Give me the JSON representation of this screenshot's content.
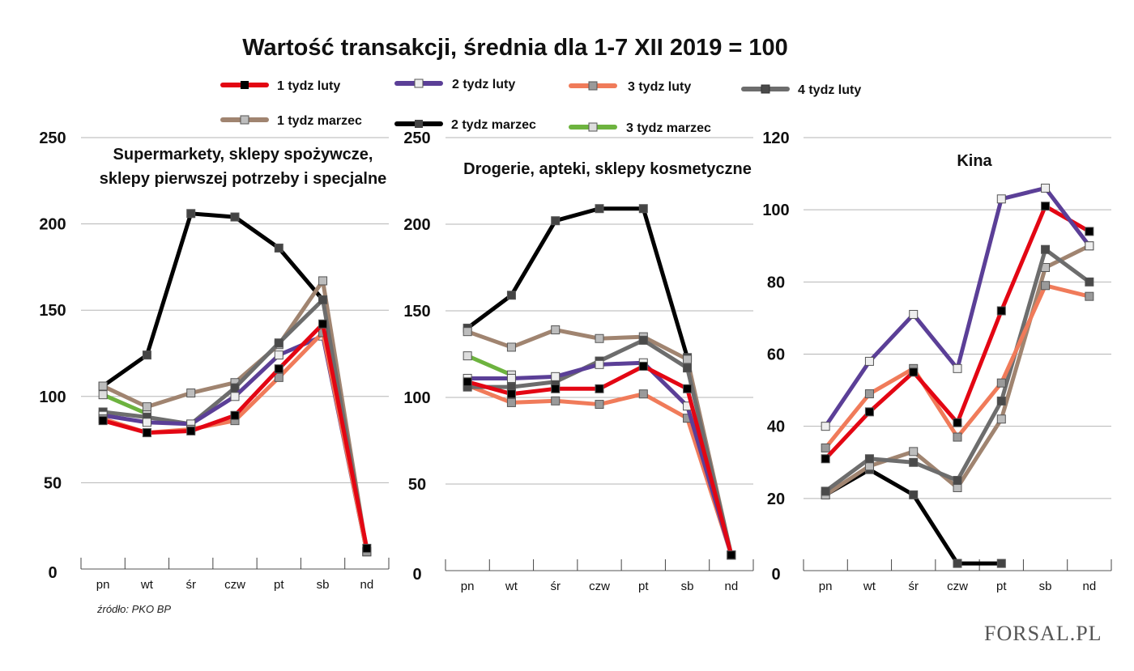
{
  "title": "Wartość transakcji, średnia dla 1-7 XII 2019 = 100",
  "source": "źródło: PKO BP",
  "logo": "FORSAL.PL",
  "legend": [
    {
      "name": "1 tydz luty",
      "color": "#e30613",
      "marker": "#000000"
    },
    {
      "name": "2 tydz luty",
      "color": "#5b3f97",
      "marker": "#eeeeee"
    },
    {
      "name": "3 tydz luty",
      "color": "#f07b5a",
      "marker": "#9a9a9a"
    },
    {
      "name": "4 tydz luty",
      "color": "#6d6d6d",
      "marker": "#4a4a4a"
    },
    {
      "name": "1 tydz marzec",
      "color": "#a08470",
      "marker": "#bdbdbd"
    },
    {
      "name": "2 tydz marzec",
      "color": "#000000",
      "marker": "#444444"
    },
    {
      "name": "3 tydz marzec",
      "color": "#6db33f",
      "marker": "#dddddd"
    }
  ],
  "chart_data": [
    {
      "type": "line",
      "title": "Supermarkety, sklepy spożywcze, sklepy pierwszej potrzeby i specjalne",
      "title_lines": [
        "Supermarkety, sklepy spożywcze,",
        "sklepy pierwszej potrzeby i specjalne"
      ],
      "categories": [
        "pn",
        "wt",
        "śr",
        "czw",
        "pt",
        "sb",
        "nd"
      ],
      "ylim": [
        0,
        250
      ],
      "yticks": [
        "0",
        "50",
        "100",
        "150",
        "200",
        "250"
      ],
      "grid": true,
      "series": [
        {
          "name": "2 tydz marzec",
          "values": [
            106,
            124,
            206,
            204,
            186,
            156,
            null
          ]
        },
        {
          "name": "3 tydz marzec",
          "values": [
            101,
            90,
            null,
            null,
            null,
            null,
            null
          ]
        },
        {
          "name": "1 tydz marzec",
          "values": [
            106,
            94,
            102,
            108,
            130,
            167,
            10
          ]
        },
        {
          "name": "4 tydz luty",
          "values": [
            91,
            88,
            84,
            105,
            131,
            156,
            10
          ]
        },
        {
          "name": "2 tydz luty",
          "values": [
            89,
            85,
            84,
            100,
            124,
            135,
            10
          ]
        },
        {
          "name": "3 tydz luty",
          "values": [
            87,
            79,
            81,
            86,
            111,
            137,
            10
          ]
        },
        {
          "name": "1 tydz luty",
          "values": [
            86,
            79,
            80,
            89,
            116,
            142,
            12
          ]
        }
      ]
    },
    {
      "type": "line",
      "title": "Drogerie, apteki, sklepy kosmetyczne",
      "title_lines": [
        "Drogerie, apteki, sklepy kosmetyczne"
      ],
      "categories": [
        "pn",
        "wt",
        "śr",
        "czw",
        "pt",
        "sb",
        "nd"
      ],
      "ylim": [
        0,
        250
      ],
      "yticks": [
        "0",
        "50",
        "100",
        "150",
        "200",
        "250"
      ],
      "grid": true,
      "series": [
        {
          "name": "2 tydz marzec",
          "values": [
            140,
            159,
            202,
            209,
            209,
            123,
            null
          ]
        },
        {
          "name": "3 tydz marzec",
          "values": [
            124,
            113,
            null,
            null,
            null,
            null,
            null
          ]
        },
        {
          "name": "1 tydz marzec",
          "values": [
            138,
            129,
            139,
            134,
            135,
            122,
            9
          ]
        },
        {
          "name": "3 tydz luty",
          "values": [
            107,
            97,
            98,
            96,
            102,
            88,
            9
          ]
        },
        {
          "name": "4 tydz luty",
          "values": [
            106,
            106,
            109,
            121,
            133,
            117,
            9
          ]
        },
        {
          "name": "2 tydz luty",
          "values": [
            111,
            111,
            112,
            119,
            120,
            95,
            9
          ]
        },
        {
          "name": "1 tydz luty",
          "values": [
            109,
            102,
            105,
            105,
            118,
            105,
            9
          ]
        }
      ]
    },
    {
      "type": "line",
      "title": "Kina",
      "title_lines": [
        "Kina"
      ],
      "categories": [
        "pn",
        "wt",
        "śr",
        "czw",
        "pt",
        "sb",
        "nd"
      ],
      "ylim": [
        0,
        120
      ],
      "yticks": [
        "0",
        "20",
        "40",
        "60",
        "80",
        "100",
        "120"
      ],
      "grid": true,
      "series": [
        {
          "name": "2 tydz marzec",
          "values": [
            21,
            28,
            21,
            2,
            2,
            null,
            null
          ]
        },
        {
          "name": "1 tydz marzec",
          "values": [
            21,
            29,
            33,
            23,
            42,
            84,
            90
          ]
        },
        {
          "name": "4 tydz luty",
          "values": [
            22,
            31,
            30,
            25,
            47,
            89,
            80
          ]
        },
        {
          "name": "3 tydz luty",
          "values": [
            34,
            49,
            56,
            37,
            52,
            79,
            76
          ]
        },
        {
          "name": "1 tydz luty",
          "values": [
            31,
            44,
            55,
            41,
            72,
            101,
            94
          ]
        },
        {
          "name": "2 tydz luty",
          "values": [
            40,
            58,
            71,
            56,
            103,
            106,
            90
          ]
        }
      ]
    }
  ]
}
